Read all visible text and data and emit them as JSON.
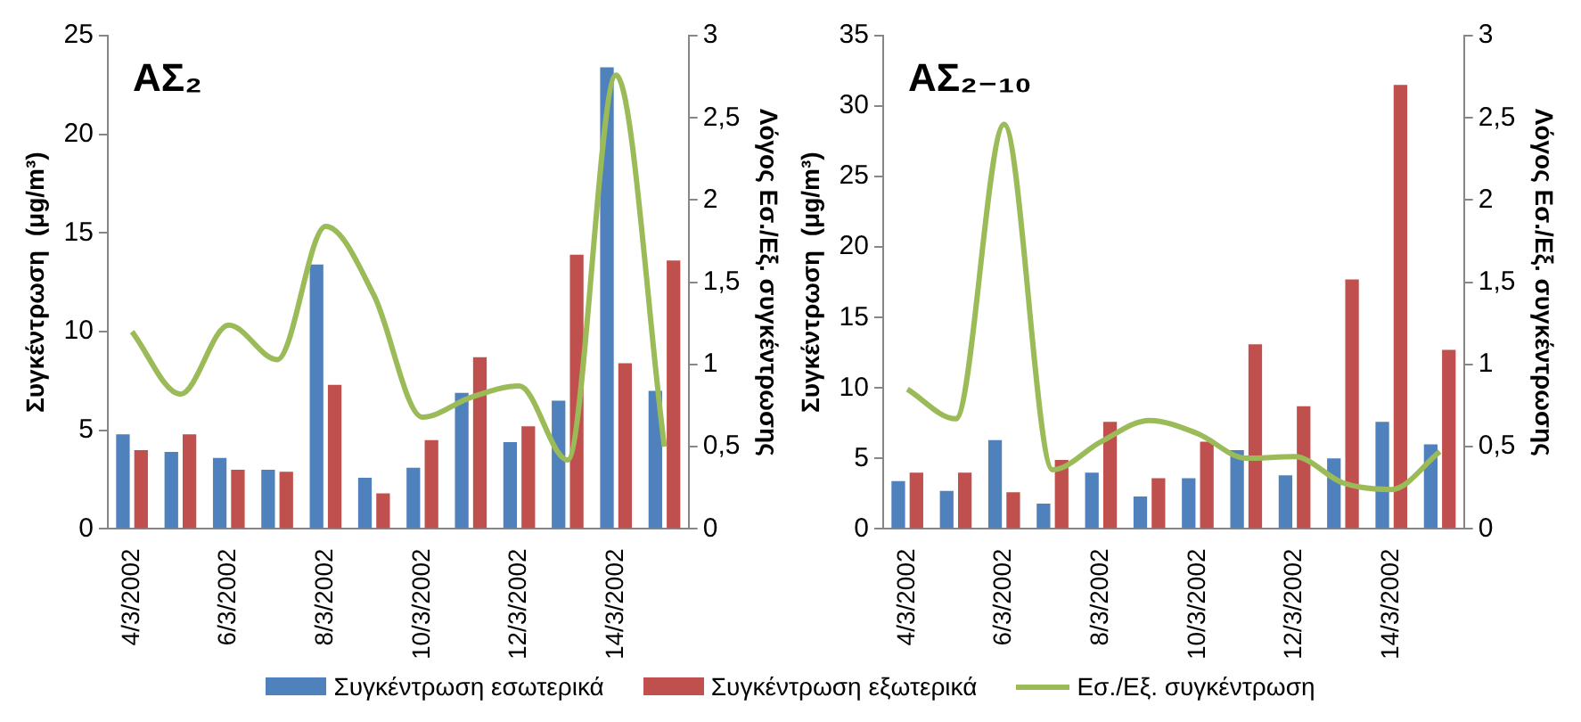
{
  "chart_data": [
    {
      "type": "bar",
      "annotations": [
        "ΑΣ₂"
      ],
      "ylabel": "Συγκέντρωση  (μg/m³)",
      "y2label": "Λόγος Εσ./Εξ. συγκέντρωσης",
      "categories": [
        "4/3/2002",
        null,
        "6/3/2002",
        null,
        "8/3/2002",
        null,
        "10/3/2002",
        null,
        "12/3/2002",
        null,
        "14/3/2002",
        null
      ],
      "series": [
        {
          "name": "Συγκέντρωση εσωτερικά",
          "color": "#4f81bd",
          "values": [
            4.8,
            3.9,
            3.6,
            3.0,
            13.4,
            2.6,
            3.1,
            6.9,
            4.4,
            6.5,
            23.4,
            7.0
          ]
        },
        {
          "name": "Συγκέντρωση εξωτερικά",
          "color": "#c0504d",
          "values": [
            4.0,
            4.8,
            3.0,
            2.9,
            7.3,
            1.8,
            4.5,
            8.7,
            5.2,
            13.9,
            8.4,
            13.6
          ]
        },
        {
          "name": "Εσ./Εξ. συγκέντρωση",
          "type": "line",
          "axis": "y2",
          "color": "#9bbb59",
          "values": [
            1.2,
            0.82,
            1.24,
            1.03,
            1.84,
            1.42,
            0.68,
            0.8,
            0.87,
            0.42,
            2.76,
            0.5
          ]
        }
      ],
      "ylim": [
        0,
        25
      ],
      "yticks": [
        0,
        5,
        10,
        15,
        20,
        25
      ],
      "y2lim": [
        0,
        3
      ],
      "y2ticks": [
        0,
        {
          "value": 0.5,
          "label": "0,5"
        },
        1,
        {
          "value": 1.5,
          "label": "1,5"
        },
        2,
        {
          "value": 2.5,
          "label": "2,5"
        },
        3
      ],
      "grid": false,
      "legend": "bottom",
      "marker": "none"
    },
    {
      "type": "bar",
      "annotations": [
        "ΑΣ₂₋₁₀"
      ],
      "ylabel": "Συγκέντρωση  (μg/m³)",
      "y2label": "Λόγος Εσ./Εξ. συγκέντρωσης",
      "categories": [
        "4/3/2002",
        null,
        "6/3/2002",
        null,
        "8/3/2002",
        null,
        "10/3/2002",
        null,
        "12/3/2002",
        null,
        "14/3/2002",
        null
      ],
      "series": [
        {
          "color": "#4f81bd",
          "values": [
            3.4,
            2.7,
            6.3,
            1.8,
            4.0,
            2.3,
            3.6,
            5.6,
            3.8,
            5.0,
            7.6,
            6.0
          ]
        },
        {
          "color": "#c0504d",
          "values": [
            4.0,
            4.0,
            2.6,
            4.9,
            7.6,
            3.6,
            6.2,
            13.1,
            8.7,
            17.7,
            31.5,
            12.7
          ]
        },
        {
          "type": "line",
          "axis": "y2",
          "color": "#9bbb59",
          "values": [
            0.85,
            0.67,
            2.46,
            0.36,
            0.53,
            0.66,
            0.58,
            0.43,
            0.44,
            0.28,
            0.24,
            0.47
          ]
        }
      ],
      "ylim": [
        0,
        35
      ],
      "yticks": [
        0,
        5,
        10,
        15,
        20,
        25,
        30,
        35
      ],
      "y2lim": [
        0,
        3
      ],
      "y2ticks": [
        0,
        {
          "value": 0.5,
          "label": "0,5"
        },
        1,
        {
          "value": 1.5,
          "label": "1,5"
        },
        2,
        {
          "value": 2.5,
          "label": "2,5"
        },
        3
      ],
      "grid": false,
      "marker": "none"
    }
  ]
}
